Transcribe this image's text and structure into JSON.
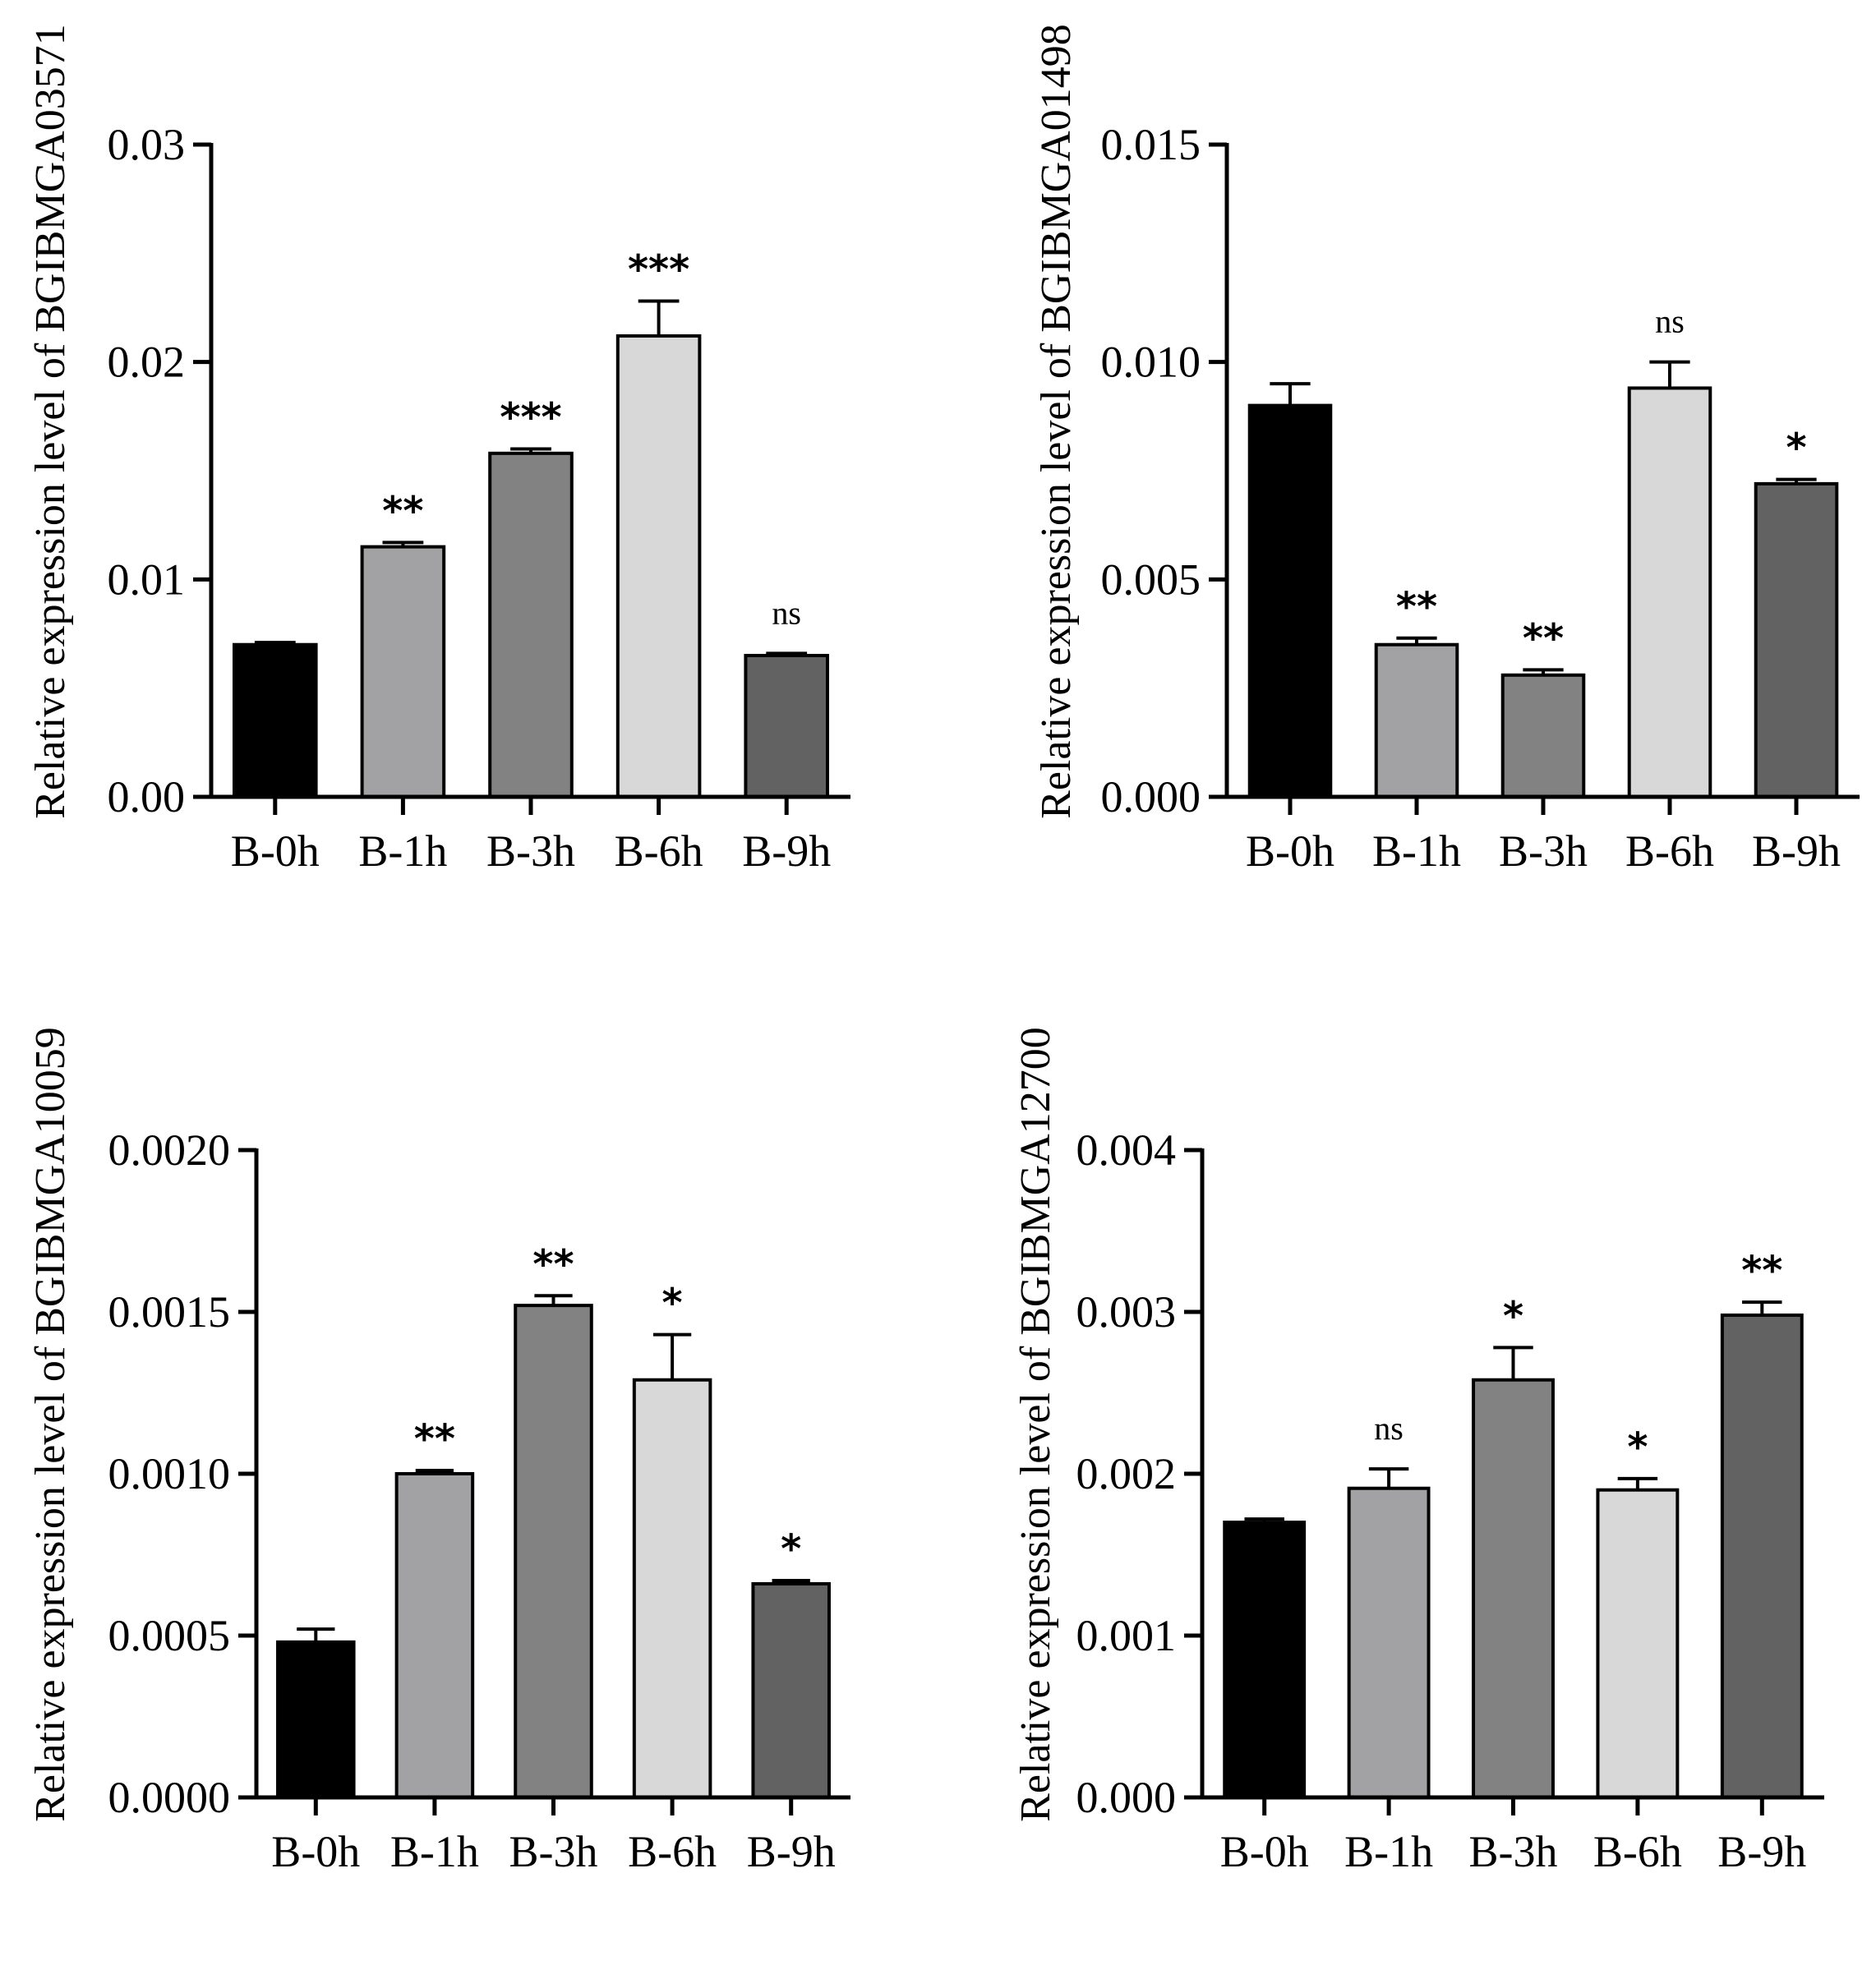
{
  "chart_data": [
    {
      "type": "bar",
      "ylabel": "Relative expression level of BGIBMGA03571",
      "ylim": [
        0,
        0.03
      ],
      "yticks": [
        0.0,
        0.01,
        0.02,
        0.03
      ],
      "ytick_labels": [
        "0.00",
        "0.01",
        "0.02",
        "0.03"
      ],
      "categories": [
        "B-0h",
        "B-1h",
        "B-3h",
        "B-6h",
        "B-9h"
      ],
      "values": [
        0.007,
        0.0115,
        0.0158,
        0.0212,
        0.0065
      ],
      "errors": [
        0.0001,
        0.0002,
        0.0002,
        0.0016,
        0.0001
      ],
      "significance": [
        "",
        "**",
        "***",
        "***",
        "ns"
      ]
    },
    {
      "type": "bar",
      "ylabel": "Relative expression level of BGIBMGA01498",
      "ylim": [
        0,
        0.015
      ],
      "yticks": [
        0.0,
        0.005,
        0.01,
        0.015
      ],
      "ytick_labels": [
        "0.000",
        "0.005",
        "0.010",
        "0.015"
      ],
      "categories": [
        "B-0h",
        "B-1h",
        "B-3h",
        "B-6h",
        "B-9h"
      ],
      "values": [
        0.009,
        0.0035,
        0.0028,
        0.0094,
        0.0072
      ],
      "errors": [
        0.0005,
        0.00015,
        0.00012,
        0.0006,
        0.0001
      ],
      "significance": [
        "",
        "**",
        "**",
        "ns",
        "*"
      ]
    },
    {
      "type": "bar",
      "ylabel": "Relative expression level of BGIBMGA10059",
      "ylim": [
        0,
        0.002
      ],
      "yticks": [
        0.0,
        0.0005,
        0.001,
        0.0015,
        0.002
      ],
      "ytick_labels": [
        "0.0000",
        "0.0005",
        "0.0010",
        "0.0015",
        "0.0020"
      ],
      "categories": [
        "B-0h",
        "B-1h",
        "B-3h",
        "B-6h",
        "B-9h"
      ],
      "values": [
        0.00048,
        0.001,
        0.00152,
        0.00129,
        0.00066
      ],
      "errors": [
        4e-05,
        1e-05,
        3e-05,
        0.00014,
        1e-05
      ],
      "significance": [
        "",
        "**",
        "**",
        "*",
        "*"
      ]
    },
    {
      "type": "bar",
      "ylabel": "Relative expression level of BGIBMGA12700",
      "ylim": [
        0,
        0.004
      ],
      "yticks": [
        0.0,
        0.001,
        0.002,
        0.003,
        0.004
      ],
      "ytick_labels": [
        "0.000",
        "0.001",
        "0.002",
        "0.003",
        "0.004"
      ],
      "categories": [
        "B-0h",
        "B-1h",
        "B-3h",
        "B-6h",
        "B-9h"
      ],
      "values": [
        0.0017,
        0.00191,
        0.00258,
        0.0019,
        0.00298
      ],
      "errors": [
        2e-05,
        0.00012,
        0.0002,
        7e-05,
        8e-05
      ],
      "significance": [
        "",
        "ns",
        "*",
        "*",
        "**"
      ]
    }
  ],
  "colors": {
    "bars": [
      "#000000",
      "#a2a2a4",
      "#828282",
      "#d8d8d8",
      "#626262"
    ],
    "axis": "#000000",
    "background": "#ffffff"
  }
}
